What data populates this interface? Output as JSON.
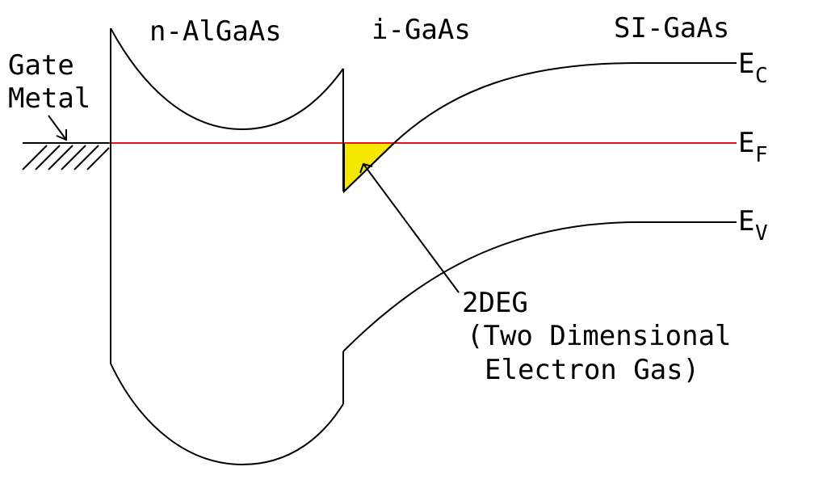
{
  "regions": {
    "n_algaas": "n-AlGaAs",
    "i_gaas": "i-GaAs",
    "si_gaas": "SI-GaAs"
  },
  "gate": {
    "line1": "Gate",
    "line2": "Metal"
  },
  "levels": {
    "ec": {
      "main": "E",
      "sub": "C"
    },
    "ef": {
      "main": "E",
      "sub": "F"
    },
    "ev": {
      "main": "E",
      "sub": "V"
    }
  },
  "twodeg": {
    "line1": "2DEG",
    "line2": "(Two Dimensional",
    "line3": "Electron Gas)"
  },
  "colors": {
    "fermi_level": "#e8141e",
    "electron_gas_fill": "#f5e800",
    "lines": "#000000"
  }
}
